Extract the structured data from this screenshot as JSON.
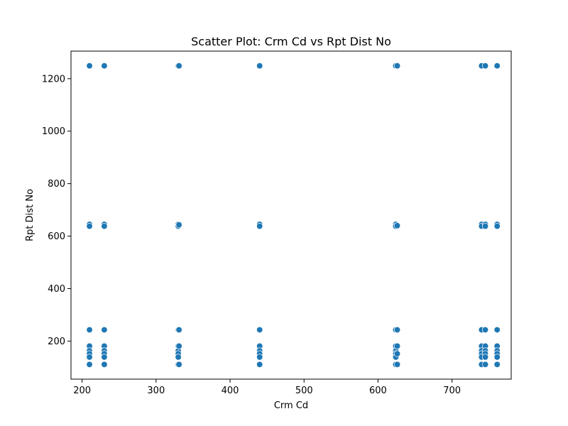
{
  "chart_data": {
    "type": "scatter",
    "title": "Scatter Plot: Crm Cd vs Rpt Dist No",
    "xlabel": "Crm Cd",
    "ylabel": "Rpt Dist No",
    "xlim": [
      185,
      780
    ],
    "ylim": [
      55,
      1305
    ],
    "xticks": [
      200,
      300,
      400,
      500,
      600,
      700
    ],
    "yticks": [
      200,
      400,
      600,
      800,
      1000,
      1200
    ],
    "grid": false,
    "legend": "none",
    "marker_color": "#1f77b4",
    "points": [
      {
        "x": 210,
        "y": 1249
      },
      {
        "x": 210,
        "y": 645
      },
      {
        "x": 210,
        "y": 638
      },
      {
        "x": 210,
        "y": 243
      },
      {
        "x": 210,
        "y": 181
      },
      {
        "x": 210,
        "y": 163
      },
      {
        "x": 210,
        "y": 152
      },
      {
        "x": 210,
        "y": 139
      },
      {
        "x": 210,
        "y": 111
      },
      {
        "x": 230,
        "y": 1249
      },
      {
        "x": 230,
        "y": 645
      },
      {
        "x": 230,
        "y": 638
      },
      {
        "x": 230,
        "y": 243
      },
      {
        "x": 230,
        "y": 181
      },
      {
        "x": 230,
        "y": 163
      },
      {
        "x": 230,
        "y": 152
      },
      {
        "x": 230,
        "y": 139
      },
      {
        "x": 230,
        "y": 111
      },
      {
        "x": 330,
        "y": 1249
      },
      {
        "x": 330,
        "y": 645
      },
      {
        "x": 330,
        "y": 638
      },
      {
        "x": 330,
        "y": 243
      },
      {
        "x": 330,
        "y": 181
      },
      {
        "x": 330,
        "y": 163
      },
      {
        "x": 330,
        "y": 152
      },
      {
        "x": 330,
        "y": 139
      },
      {
        "x": 330,
        "y": 111
      },
      {
        "x": 331,
        "y": 1249
      },
      {
        "x": 331,
        "y": 643
      },
      {
        "x": 331,
        "y": 243
      },
      {
        "x": 331,
        "y": 181
      },
      {
        "x": 331,
        "y": 111
      },
      {
        "x": 440,
        "y": 1249
      },
      {
        "x": 440,
        "y": 645
      },
      {
        "x": 440,
        "y": 638
      },
      {
        "x": 440,
        "y": 243
      },
      {
        "x": 440,
        "y": 181
      },
      {
        "x": 440,
        "y": 163
      },
      {
        "x": 440,
        "y": 152
      },
      {
        "x": 440,
        "y": 139
      },
      {
        "x": 440,
        "y": 111
      },
      {
        "x": 624,
        "y": 1249
      },
      {
        "x": 624,
        "y": 645
      },
      {
        "x": 624,
        "y": 638
      },
      {
        "x": 624,
        "y": 243
      },
      {
        "x": 624,
        "y": 181
      },
      {
        "x": 624,
        "y": 163
      },
      {
        "x": 624,
        "y": 152
      },
      {
        "x": 624,
        "y": 139
      },
      {
        "x": 624,
        "y": 111
      },
      {
        "x": 626,
        "y": 1249
      },
      {
        "x": 626,
        "y": 640
      },
      {
        "x": 626,
        "y": 243
      },
      {
        "x": 626,
        "y": 181
      },
      {
        "x": 626,
        "y": 152
      },
      {
        "x": 626,
        "y": 111
      },
      {
        "x": 740,
        "y": 1249
      },
      {
        "x": 740,
        "y": 645
      },
      {
        "x": 740,
        "y": 638
      },
      {
        "x": 740,
        "y": 243
      },
      {
        "x": 740,
        "y": 181
      },
      {
        "x": 740,
        "y": 163
      },
      {
        "x": 740,
        "y": 152
      },
      {
        "x": 740,
        "y": 139
      },
      {
        "x": 740,
        "y": 111
      },
      {
        "x": 745,
        "y": 1249
      },
      {
        "x": 745,
        "y": 645
      },
      {
        "x": 745,
        "y": 638
      },
      {
        "x": 745,
        "y": 243
      },
      {
        "x": 745,
        "y": 181
      },
      {
        "x": 745,
        "y": 163
      },
      {
        "x": 745,
        "y": 152
      },
      {
        "x": 745,
        "y": 139
      },
      {
        "x": 745,
        "y": 111
      },
      {
        "x": 761,
        "y": 1249
      },
      {
        "x": 761,
        "y": 645
      },
      {
        "x": 761,
        "y": 638
      },
      {
        "x": 761,
        "y": 243
      },
      {
        "x": 761,
        "y": 181
      },
      {
        "x": 761,
        "y": 163
      },
      {
        "x": 761,
        "y": 152
      },
      {
        "x": 761,
        "y": 139
      },
      {
        "x": 761,
        "y": 111
      }
    ]
  }
}
